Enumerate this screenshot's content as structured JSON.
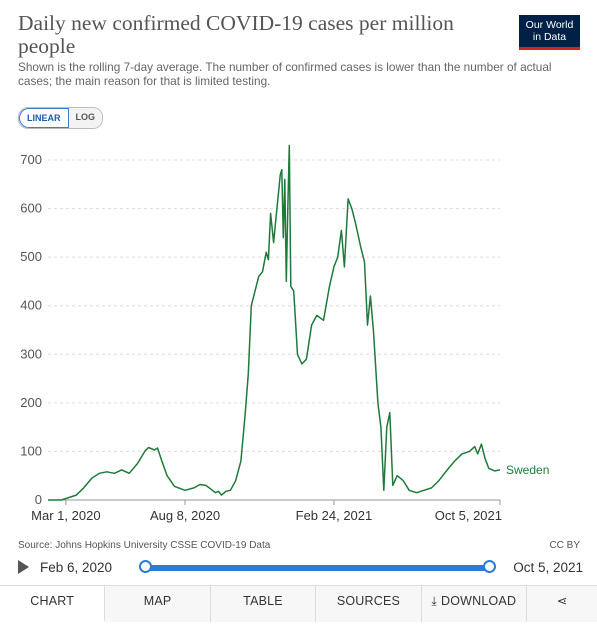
{
  "header": {
    "title": "Daily new confirmed COVID-19 cases per million people",
    "subtitle": "Shown is the rolling 7-day average. The number of confirmed cases is lower than the number of actual cases; the main reason for that is limited testing.",
    "logo_line1": "Our World",
    "logo_line2": "in Data"
  },
  "scale_toggle": {
    "linear": "LINEAR",
    "log": "LOG",
    "selected": "LINEAR"
  },
  "chart_data": {
    "type": "line",
    "title": "Daily new confirmed COVID-19 cases per million people",
    "xlabel": "",
    "ylabel": "",
    "y_ticks": [
      0,
      100,
      200,
      300,
      400,
      500,
      600,
      700
    ],
    "x_ticks": [
      "Mar 1, 2020",
      "Aug 8, 2020",
      "Feb 24, 2021",
      "Oct 5, 2021"
    ],
    "ylim": [
      0,
      700
    ],
    "xlim": [
      "2020-02-06",
      "2021-10-05"
    ],
    "grid": "horizontal dashed",
    "line_color": "#1f7a3a",
    "series": [
      {
        "name": "Sweden",
        "points": [
          [
            "2020-02-06",
            0
          ],
          [
            "2020-02-24",
            0
          ],
          [
            "2020-03-01",
            3
          ],
          [
            "2020-03-15",
            10
          ],
          [
            "2020-03-25",
            25
          ],
          [
            "2020-04-05",
            45
          ],
          [
            "2020-04-15",
            55
          ],
          [
            "2020-04-25",
            58
          ],
          [
            "2020-05-05",
            55
          ],
          [
            "2020-05-15",
            62
          ],
          [
            "2020-05-25",
            55
          ],
          [
            "2020-06-05",
            75
          ],
          [
            "2020-06-15",
            100
          ],
          [
            "2020-06-20",
            108
          ],
          [
            "2020-06-28",
            103
          ],
          [
            "2020-07-02",
            107
          ],
          [
            "2020-07-08",
            80
          ],
          [
            "2020-07-15",
            50
          ],
          [
            "2020-07-25",
            28
          ],
          [
            "2020-08-08",
            20
          ],
          [
            "2020-08-20",
            25
          ],
          [
            "2020-08-28",
            32
          ],
          [
            "2020-09-05",
            30
          ],
          [
            "2020-09-12",
            22
          ],
          [
            "2020-09-18",
            15
          ],
          [
            "2020-09-22",
            18
          ],
          [
            "2020-09-26",
            10
          ],
          [
            "2020-10-02",
            18
          ],
          [
            "2020-10-08",
            20
          ],
          [
            "2020-10-15",
            40
          ],
          [
            "2020-10-22",
            80
          ],
          [
            "2020-10-28",
            180
          ],
          [
            "2020-11-01",
            260
          ],
          [
            "2020-11-05",
            400
          ],
          [
            "2020-11-10",
            430
          ],
          [
            "2020-11-15",
            460
          ],
          [
            "2020-11-20",
            470
          ],
          [
            "2020-11-25",
            510
          ],
          [
            "2020-11-28",
            495
          ],
          [
            "2020-12-01",
            590
          ],
          [
            "2020-12-05",
            530
          ],
          [
            "2020-12-10",
            610
          ],
          [
            "2020-12-14",
            670
          ],
          [
            "2020-12-16",
            680
          ],
          [
            "2020-12-18",
            540
          ],
          [
            "2020-12-20",
            660
          ],
          [
            "2020-12-22",
            450
          ],
          [
            "2020-12-24",
            600
          ],
          [
            "2020-12-26",
            730
          ],
          [
            "2020-12-28",
            440
          ],
          [
            "2021-01-01",
            430
          ],
          [
            "2021-01-06",
            300
          ],
          [
            "2021-01-12",
            280
          ],
          [
            "2021-01-18",
            290
          ],
          [
            "2021-01-25",
            360
          ],
          [
            "2021-02-01",
            380
          ],
          [
            "2021-02-10",
            370
          ],
          [
            "2021-02-18",
            440
          ],
          [
            "2021-02-24",
            480
          ],
          [
            "2021-03-01",
            500
          ],
          [
            "2021-03-06",
            555
          ],
          [
            "2021-03-10",
            480
          ],
          [
            "2021-03-15",
            620
          ],
          [
            "2021-03-20",
            600
          ],
          [
            "2021-03-25",
            570
          ],
          [
            "2021-04-01",
            520
          ],
          [
            "2021-04-06",
            490
          ],
          [
            "2021-04-10",
            360
          ],
          [
            "2021-04-14",
            420
          ],
          [
            "2021-04-18",
            350
          ],
          [
            "2021-04-24",
            200
          ],
          [
            "2021-04-28",
            150
          ],
          [
            "2021-05-02",
            20
          ],
          [
            "2021-05-06",
            150
          ],
          [
            "2021-05-10",
            180
          ],
          [
            "2021-05-14",
            30
          ],
          [
            "2021-05-20",
            50
          ],
          [
            "2021-05-28",
            40
          ],
          [
            "2021-06-05",
            20
          ],
          [
            "2021-06-15",
            15
          ],
          [
            "2021-06-25",
            20
          ],
          [
            "2021-07-05",
            25
          ],
          [
            "2021-07-15",
            40
          ],
          [
            "2021-07-25",
            60
          ],
          [
            "2021-08-05",
            80
          ],
          [
            "2021-08-15",
            95
          ],
          [
            "2021-08-25",
            100
          ],
          [
            "2021-09-01",
            110
          ],
          [
            "2021-09-05",
            95
          ],
          [
            "2021-09-10",
            115
          ],
          [
            "2021-09-15",
            85
          ],
          [
            "2021-09-20",
            65
          ],
          [
            "2021-09-28",
            60
          ],
          [
            "2021-10-05",
            62
          ]
        ]
      }
    ]
  },
  "footer": {
    "source": "Source: Johns Hopkins University CSSE COVID-19 Data",
    "license": "CC BY",
    "timeline_start": "Feb 6, 2020",
    "timeline_end": "Oct 5, 2021"
  },
  "tabs": [
    {
      "label": "CHART",
      "active": true
    },
    {
      "label": "MAP"
    },
    {
      "label": "TABLE"
    },
    {
      "label": "SOURCES"
    },
    {
      "label": "DOWNLOAD"
    },
    {
      "label": ""
    }
  ],
  "icons": {
    "play": "play-icon",
    "download": "download-icon",
    "share": "share-icon"
  }
}
